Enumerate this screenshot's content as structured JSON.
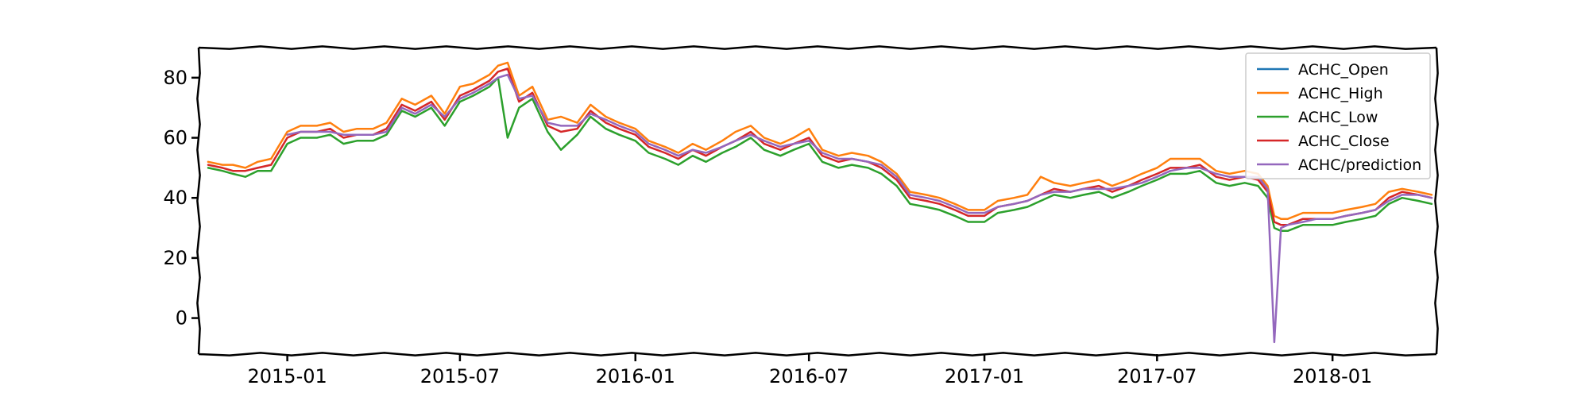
{
  "chart_data": {
    "type": "line",
    "title": "",
    "xlabel": "",
    "ylabel": "",
    "x_range": [
      "2014-09-30",
      "2018-04-20"
    ],
    "ylim": [
      -12,
      90
    ],
    "x_ticks": [
      {
        "date": "2015-01-01",
        "label": "2015-01"
      },
      {
        "date": "2015-07-01",
        "label": "2015-07"
      },
      {
        "date": "2016-01-01",
        "label": "2016-01"
      },
      {
        "date": "2016-07-01",
        "label": "2016-07"
      },
      {
        "date": "2017-01-01",
        "label": "2017-01"
      },
      {
        "date": "2017-07-01",
        "label": "2017-07"
      },
      {
        "date": "2018-01-01",
        "label": "2018-01"
      }
    ],
    "y_ticks": [
      0,
      20,
      40,
      60,
      80
    ],
    "grid": false,
    "legend_position": "top-right",
    "style": "xkcd",
    "series": [
      {
        "name": "ACHC_Open",
        "color": "#1f77b4"
      },
      {
        "name": "ACHC_High",
        "color": "#ff7f0e"
      },
      {
        "name": "ACHC_Low",
        "color": "#2ca02c"
      },
      {
        "name": "ACHC_Close",
        "color": "#d62728"
      },
      {
        "name": "ACHC/prediction",
        "color": "#9467bd"
      }
    ],
    "x": [
      "2014-10-10",
      "2014-10-25",
      "2014-11-05",
      "2014-11-18",
      "2014-12-01",
      "2014-12-15",
      "2015-01-01",
      "2015-01-15",
      "2015-02-01",
      "2015-02-15",
      "2015-03-01",
      "2015-03-15",
      "2015-04-01",
      "2015-04-15",
      "2015-05-01",
      "2015-05-15",
      "2015-06-01",
      "2015-06-15",
      "2015-07-01",
      "2015-07-15",
      "2015-08-01",
      "2015-08-10",
      "2015-08-20",
      "2015-09-01",
      "2015-09-15",
      "2015-10-01",
      "2015-10-15",
      "2015-11-01",
      "2015-11-15",
      "2015-12-01",
      "2015-12-15",
      "2016-01-01",
      "2016-01-15",
      "2016-02-01",
      "2016-02-15",
      "2016-03-01",
      "2016-03-15",
      "2016-04-01",
      "2016-04-15",
      "2016-05-01",
      "2016-05-15",
      "2016-06-01",
      "2016-06-15",
      "2016-07-01",
      "2016-07-15",
      "2016-08-01",
      "2016-08-15",
      "2016-09-01",
      "2016-09-15",
      "2016-10-01",
      "2016-10-15",
      "2016-11-01",
      "2016-11-15",
      "2016-12-01",
      "2016-12-15",
      "2017-01-01",
      "2017-01-15",
      "2017-02-01",
      "2017-02-15",
      "2017-03-01",
      "2017-03-15",
      "2017-04-01",
      "2017-04-15",
      "2017-05-01",
      "2017-05-15",
      "2017-06-01",
      "2017-06-15",
      "2017-07-01",
      "2017-07-15",
      "2017-08-01",
      "2017-08-15",
      "2017-09-01",
      "2017-09-15",
      "2017-10-01",
      "2017-10-15",
      "2017-10-25",
      "2017-11-01",
      "2017-11-08",
      "2017-11-15",
      "2017-12-01",
      "2017-12-15",
      "2018-01-01",
      "2018-01-15",
      "2018-02-01",
      "2018-02-15",
      "2018-03-01",
      "2018-03-15",
      "2018-04-01",
      "2018-04-15"
    ],
    "values": {
      "ACHC_Open": [
        51,
        50,
        49,
        49,
        50,
        51,
        60,
        62,
        62,
        63,
        60,
        61,
        61,
        63,
        71,
        69,
        72,
        66,
        74,
        76,
        79,
        82,
        83,
        72,
        75,
        64,
        62,
        63,
        69,
        65,
        63,
        61,
        57,
        55,
        53,
        56,
        54,
        57,
        59,
        62,
        58,
        56,
        58,
        60,
        54,
        52,
        53,
        52,
        50,
        46,
        40,
        39,
        38,
        36,
        34,
        34,
        37,
        38,
        39,
        41,
        43,
        42,
        43,
        44,
        42,
        44,
        46,
        48,
        50,
        50,
        51,
        47,
        46,
        47,
        46,
        42,
        32,
        31,
        31,
        33,
        33,
        33,
        34,
        35,
        36,
        40,
        42,
        41,
        40
      ],
      "ACHC_High": [
        52,
        51,
        51,
        50,
        52,
        53,
        62,
        64,
        64,
        65,
        62,
        63,
        63,
        65,
        73,
        71,
        74,
        68,
        77,
        78,
        81,
        84,
        85,
        74,
        77,
        66,
        67,
        65,
        71,
        67,
        65,
        63,
        59,
        57,
        55,
        58,
        56,
        59,
        62,
        64,
        60,
        58,
        60,
        63,
        56,
        54,
        55,
        54,
        52,
        48,
        42,
        41,
        40,
        38,
        36,
        36,
        39,
        40,
        41,
        47,
        45,
        44,
        45,
        46,
        44,
        46,
        48,
        50,
        53,
        53,
        53,
        49,
        48,
        49,
        48,
        44,
        34,
        33,
        33,
        35,
        35,
        35,
        36,
        37,
        38,
        42,
        43,
        42,
        41
      ],
      "ACHC_Low": [
        50,
        49,
        48,
        47,
        49,
        49,
        58,
        60,
        60,
        61,
        58,
        59,
        59,
        61,
        69,
        67,
        70,
        64,
        72,
        74,
        77,
        80,
        60,
        70,
        73,
        62,
        56,
        61,
        67,
        63,
        61,
        59,
        55,
        53,
        51,
        54,
        52,
        55,
        57,
        60,
        56,
        54,
        56,
        58,
        52,
        50,
        51,
        50,
        48,
        44,
        38,
        37,
        36,
        34,
        32,
        32,
        35,
        36,
        37,
        39,
        41,
        40,
        41,
        42,
        40,
        42,
        44,
        46,
        48,
        48,
        49,
        45,
        44,
        45,
        44,
        40,
        30,
        29,
        29,
        31,
        31,
        31,
        32,
        33,
        34,
        38,
        40,
        39,
        38
      ],
      "ACHC_Close": [
        51,
        50,
        49,
        49,
        50,
        51,
        60,
        62,
        62,
        63,
        60,
        61,
        61,
        63,
        71,
        69,
        72,
        66,
        74,
        76,
        79,
        82,
        83,
        72,
        75,
        64,
        62,
        63,
        69,
        65,
        63,
        61,
        57,
        55,
        53,
        56,
        54,
        57,
        59,
        62,
        58,
        56,
        58,
        60,
        54,
        52,
        53,
        52,
        50,
        46,
        40,
        39,
        38,
        36,
        34,
        34,
        37,
        38,
        39,
        41,
        43,
        42,
        43,
        44,
        42,
        44,
        46,
        48,
        50,
        50,
        51,
        47,
        46,
        47,
        46,
        42,
        32,
        31,
        31,
        33,
        33,
        33,
        34,
        35,
        36,
        40,
        42,
        41,
        40
      ],
      "ACHC/prediction": [
        null,
        null,
        null,
        null,
        null,
        null,
        61,
        62,
        62,
        62,
        61,
        61,
        61,
        62,
        70,
        68,
        71,
        67,
        73,
        75,
        78,
        80,
        81,
        73,
        74,
        65,
        64,
        64,
        68,
        66,
        64,
        62,
        58,
        56,
        54,
        56,
        55,
        57,
        59,
        61,
        59,
        57,
        58,
        59,
        55,
        53,
        53,
        52,
        51,
        47,
        41,
        40,
        39,
        37,
        35,
        35,
        37,
        38,
        39,
        41,
        42,
        42,
        43,
        43,
        43,
        44,
        45,
        47,
        49,
        50,
        50,
        48,
        47,
        47,
        47,
        43,
        -8,
        30,
        31,
        32,
        33,
        33,
        34,
        35,
        36,
        39,
        41,
        41,
        40
      ]
    }
  }
}
